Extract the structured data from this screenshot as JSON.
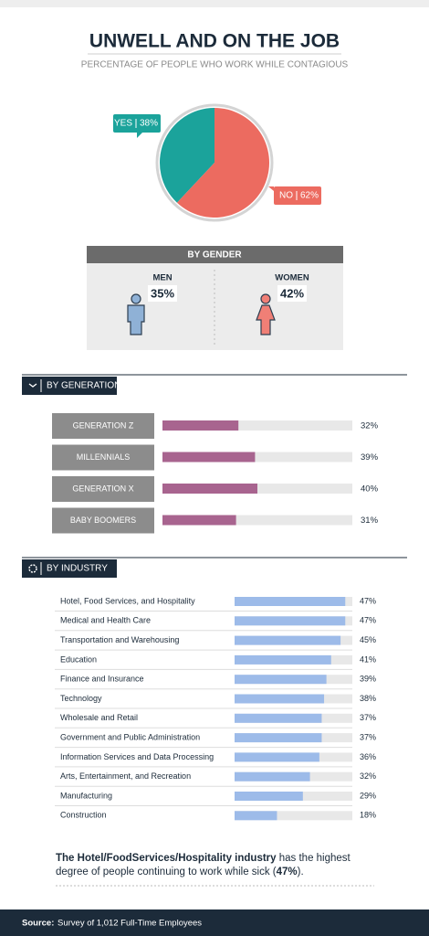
{
  "chart_data": [
    {
      "type": "pie",
      "title": "UNWELL AND ON THE JOB",
      "subtitle": "PERCENTAGE OF PEOPLE WHO WORK WHILE CONTAGIOUS",
      "categories": [
        "YES",
        "NO"
      ],
      "values": [
        38,
        62
      ],
      "value_labels": [
        "38%",
        "62%"
      ],
      "colors": [
        "#1ba39b",
        "#ec6b60"
      ]
    },
    {
      "type": "gender",
      "title": "BY GENDER",
      "categories": [
        "MEN",
        "WOMEN"
      ],
      "values": [
        35,
        42
      ],
      "value_labels": [
        "35%",
        "42%"
      ],
      "colors": [
        "#8fb1d6",
        "#f07f76"
      ]
    },
    {
      "type": "genbar",
      "title": "BY GENERATION",
      "categories": [
        "GENERATION Z",
        "MILLENNIALS",
        "GENERATION X",
        "BABY BOOMERS"
      ],
      "values": [
        32,
        39,
        40,
        31
      ],
      "value_labels": [
        "32%",
        "39%",
        "40%",
        "31%"
      ],
      "color": "#a8648f",
      "xlim": [
        0,
        80
      ]
    },
    {
      "type": "indbar",
      "title": "BY INDUSTRY",
      "categories": [
        "Hotel, Food Services, and Hospitality",
        "Medical and Health Care",
        "Transportation and Warehousing",
        "Education",
        "Finance and Insurance",
        "Technology",
        "Wholesale and Retail",
        "Government and Public Administration",
        "Information Services and Data Processing",
        "Arts, Entertainment, and Recreation",
        "Manufacturing",
        "Construction"
      ],
      "values": [
        47,
        47,
        45,
        41,
        39,
        38,
        37,
        37,
        36,
        32,
        29,
        18
      ],
      "value_labels": [
        "47%",
        "47%",
        "45%",
        "41%",
        "39%",
        "38%",
        "37%",
        "37%",
        "36%",
        "32%",
        "29%",
        "18%"
      ],
      "color": "#9dbbe9",
      "xlim": [
        0,
        50
      ]
    }
  ],
  "note": {
    "bold_1": "The Hotel/FoodServices/Hospitality industry",
    "text_1": " has the highest degree of people continuing to work while sick (",
    "bold_2": "47%",
    "text_2": ")."
  },
  "source": {
    "label": "Source:",
    "text": "Survey of 1,012 Full-Time Employees"
  }
}
